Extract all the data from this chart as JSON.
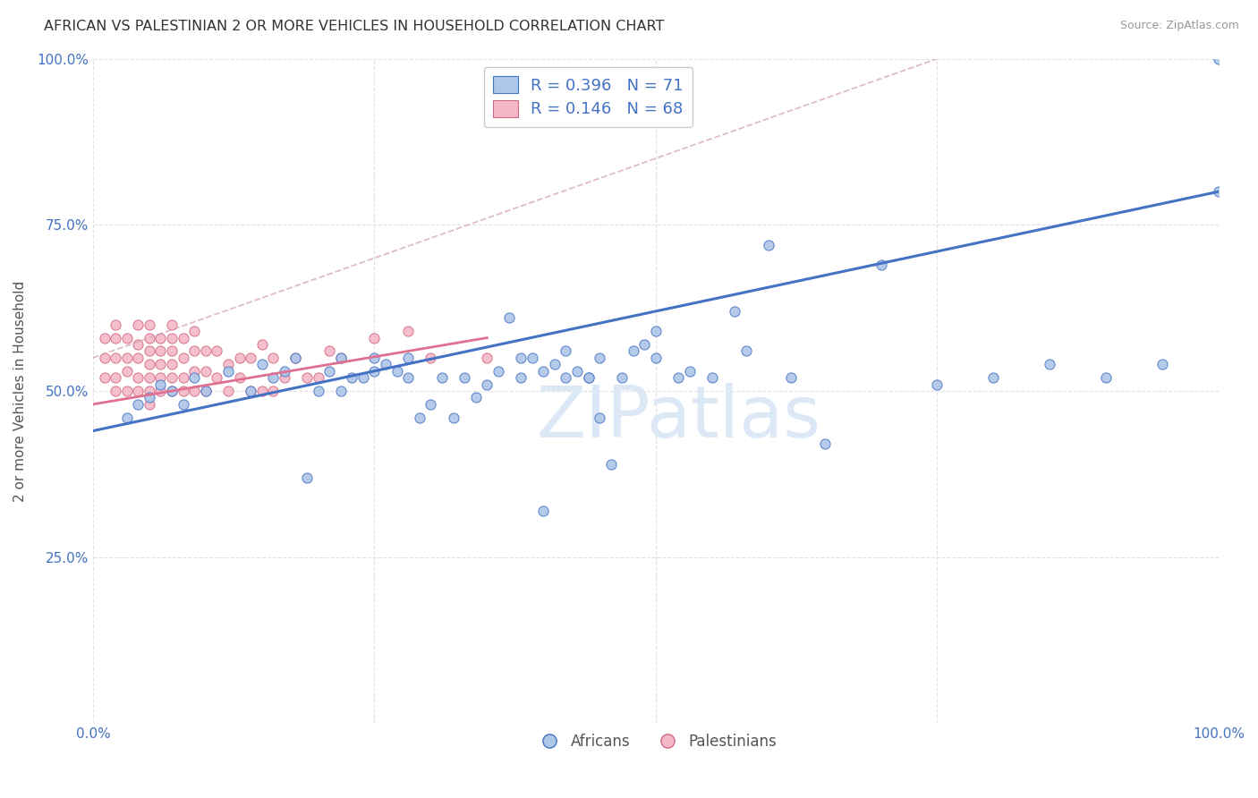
{
  "title": "AFRICAN VS PALESTINIAN 2 OR MORE VEHICLES IN HOUSEHOLD CORRELATION CHART",
  "source": "Source: ZipAtlas.com",
  "ylabel": "2 or more Vehicles in Household",
  "xlim": [
    0,
    100
  ],
  "ylim": [
    0,
    100
  ],
  "african_color": "#aec6e8",
  "palestinian_color": "#f5b8c8",
  "african_line_color": "#4472c4",
  "palestinian_line_color": "#e07090",
  "trendline_dashed_color": "#d4a0b0",
  "watermark": "ZIPatlas",
  "watermark_color": "#dce8f5",
  "africans_scatter_x": [
    3,
    4,
    7,
    5,
    6,
    8,
    9,
    10,
    12,
    14,
    15,
    16,
    17,
    18,
    19,
    20,
    21,
    22,
    22,
    23,
    24,
    25,
    25,
    26,
    27,
    28,
    28,
    29,
    30,
    31,
    32,
    33,
    34,
    35,
    36,
    37,
    38,
    39,
    40,
    40,
    41,
    42,
    42,
    43,
    44,
    45,
    46,
    47,
    48,
    49,
    50,
    52,
    53,
    55,
    57,
    58,
    60,
    62,
    65,
    70,
    75,
    80,
    85,
    90,
    95,
    100,
    45,
    50,
    38,
    44,
    100
  ],
  "africans_scatter_y": [
    46,
    48,
    50,
    49,
    51,
    48,
    52,
    50,
    53,
    50,
    54,
    52,
    53,
    55,
    37,
    50,
    53,
    50,
    55,
    52,
    52,
    53,
    55,
    54,
    53,
    52,
    55,
    46,
    48,
    52,
    46,
    52,
    49,
    51,
    53,
    61,
    55,
    55,
    53,
    32,
    54,
    52,
    56,
    53,
    52,
    46,
    39,
    52,
    56,
    57,
    59,
    52,
    53,
    52,
    62,
    56,
    72,
    52,
    42,
    69,
    51,
    52,
    54,
    52,
    54,
    80,
    55,
    55,
    52,
    52,
    100
  ],
  "palestinians_scatter_x": [
    1,
    1,
    1,
    2,
    2,
    2,
    2,
    2,
    3,
    3,
    3,
    3,
    4,
    4,
    4,
    4,
    4,
    5,
    5,
    5,
    5,
    5,
    5,
    5,
    6,
    6,
    6,
    6,
    6,
    7,
    7,
    7,
    7,
    7,
    7,
    8,
    8,
    8,
    8,
    9,
    9,
    9,
    9,
    10,
    10,
    10,
    11,
    11,
    12,
    12,
    13,
    13,
    14,
    14,
    15,
    15,
    16,
    16,
    17,
    18,
    19,
    20,
    21,
    22,
    25,
    28,
    30,
    35
  ],
  "palestinians_scatter_y": [
    52,
    55,
    58,
    50,
    52,
    55,
    58,
    60,
    50,
    53,
    55,
    58,
    50,
    52,
    55,
    57,
    60,
    48,
    50,
    52,
    54,
    56,
    58,
    60,
    50,
    52,
    54,
    56,
    58,
    50,
    52,
    54,
    56,
    58,
    60,
    50,
    52,
    55,
    58,
    50,
    53,
    56,
    59,
    50,
    53,
    56,
    52,
    56,
    50,
    54,
    52,
    55,
    50,
    55,
    50,
    57,
    50,
    55,
    52,
    55,
    52,
    52,
    56,
    55,
    58,
    59,
    55,
    55
  ],
  "af_regress_x0": 0,
  "af_regress_y0": 44,
  "af_regress_x1": 100,
  "af_regress_y1": 80,
  "pal_regress_x0": 0,
  "pal_regress_y0": 48,
  "pal_regress_x1": 35,
  "pal_regress_y1": 58,
  "pal_dashed_x0": 0,
  "pal_dashed_y0": 55,
  "pal_dashed_x1": 75,
  "pal_dashed_y1": 100
}
